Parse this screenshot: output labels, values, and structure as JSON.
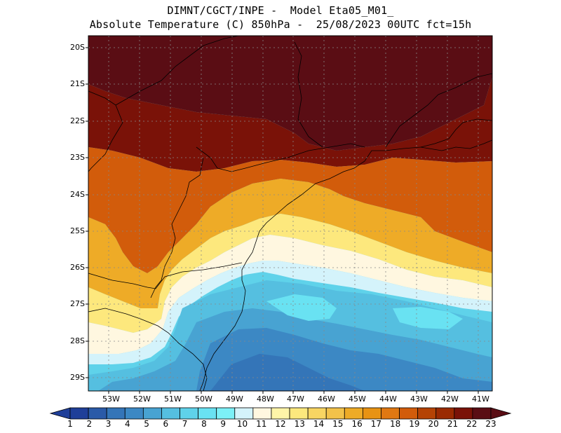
{
  "header": {
    "line1": "DIMNT/CGCT/INPE -  Model Eta05_M01_",
    "line2": "Absolute Temperature (C) 850hPa -  25/08/2023 00UTC fct=15h"
  },
  "axes": {
    "lat_labels": [
      "20S",
      "21S",
      "22S",
      "23S",
      "24S",
      "25S",
      "26S",
      "27S",
      "28S",
      "29S"
    ],
    "lon_labels": [
      "53W",
      "52W",
      "51W",
      "50W",
      "49W",
      "48W",
      "47W",
      "46W",
      "45W",
      "44W",
      "43W",
      "42W",
      "41W"
    ]
  },
  "colorbar": {
    "labels": [
      "1",
      "2",
      "3",
      "4",
      "5",
      "6",
      "7",
      "8",
      "9",
      "10",
      "11",
      "12",
      "13",
      "14",
      "15",
      "16",
      "17",
      "18",
      "19",
      "20",
      "21",
      "22",
      "23"
    ],
    "colors": [
      "#1f3f99",
      "#2a5aa8",
      "#3475b8",
      "#3c88c4",
      "#48a3d2",
      "#55bfe0",
      "#5fd2ea",
      "#69e2f2",
      "#7cf0f7",
      "#d4f3fb",
      "#fff7e0",
      "#fff4a8",
      "#fde87d",
      "#f8d562",
      "#f2c24a",
      "#eeab27",
      "#e89313",
      "#e07812",
      "#d25c0b",
      "#b54305",
      "#9a2a02",
      "#7a1208",
      "#5a0d14"
    ]
  },
  "map": {
    "colors": {
      "hot": "#5a0d14",
      "warm": "#7a1208",
      "orange": "#d25c0b",
      "amber": "#eeab27",
      "yellow": "#fde87d",
      "pale": "#fff7e0",
      "ice": "#d4f3fb",
      "cyan": "#69e2f2",
      "sky": "#48a3d2",
      "blue": "#3475b8"
    }
  }
}
